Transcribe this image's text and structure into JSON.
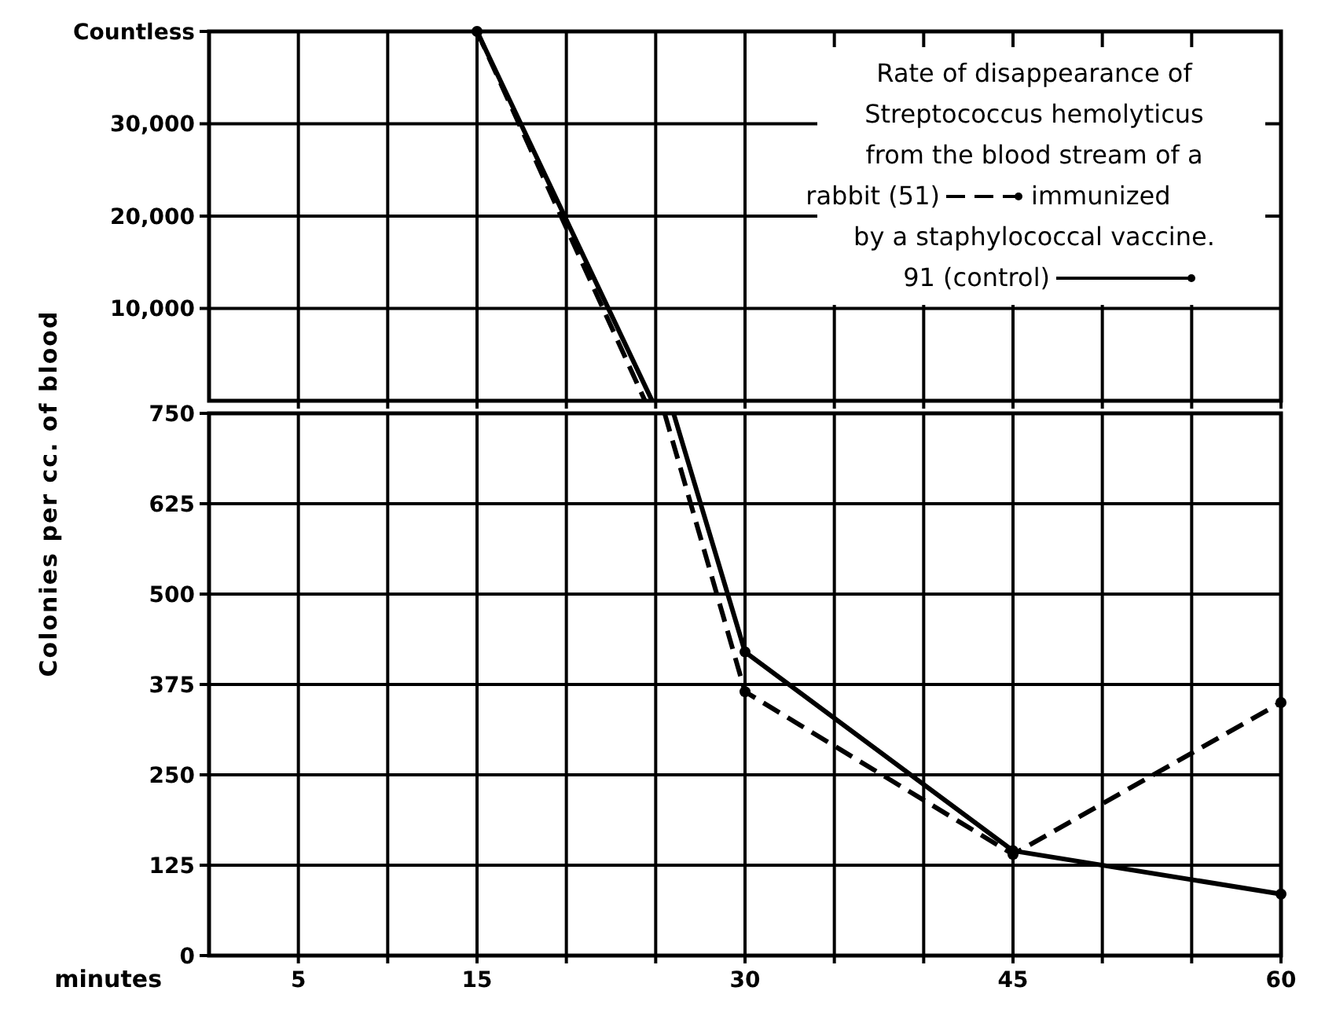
{
  "chart_data": [
    {
      "type": "line",
      "title": "Rate of disappearance of Streptococcus hemolyticus from the blood stream of a",
      "xlim": [
        0,
        60
      ],
      "xticks": [
        {
          "value": 5,
          "label": null
        },
        {
          "value": 10,
          "label": null
        },
        {
          "value": 15,
          "label": null
        },
        {
          "value": 20,
          "label": null
        },
        {
          "value": 25,
          "label": null
        },
        {
          "value": 30,
          "label": null
        },
        {
          "value": 35,
          "label": null
        },
        {
          "value": 40,
          "label": null
        },
        {
          "value": 45,
          "label": null
        },
        {
          "value": 50,
          "label": null
        },
        {
          "value": 55,
          "label": null
        },
        {
          "value": 60,
          "label": null
        }
      ],
      "ylim": [
        0,
        40000
      ],
      "yticks": [
        {
          "value": 10000,
          "label": "10,000"
        },
        {
          "value": 20000,
          "label": "20,000"
        },
        {
          "value": 30000,
          "label": "30,000"
        },
        {
          "value": 40000,
          "label": "Countless"
        }
      ],
      "series": [
        {
          "name": "rabbit (51)",
          "color": "#000000",
          "line_style": "dashed",
          "marker": "none",
          "x": [
            15,
            24.4
          ],
          "values": [
            40000,
            0
          ]
        },
        {
          "name": "91 (control)",
          "color": "#000000",
          "line_style": "solid",
          "marker": "none",
          "x": [
            15,
            24.8
          ],
          "values": [
            40000,
            0
          ]
        },
        {
          "type": "scatter",
          "color": "#000000",
          "marker": "circle",
          "x": [
            15
          ],
          "values": [
            40000
          ]
        }
      ],
      "annotations": [
        "immunized by a staphylococcal vaccine."
      ],
      "grid": true,
      "legend": "top right",
      "tick_labels": "y"
    },
    {
      "type": "line",
      "xlabel": "minutes",
      "ylabel": "Colonies per cc. of blood",
      "xlim": [
        0,
        60
      ],
      "xticks": [
        {
          "value": 5,
          "label": "5"
        },
        {
          "value": 10,
          "label": null
        },
        {
          "value": 15,
          "label": "15"
        },
        {
          "value": 20,
          "label": null
        },
        {
          "value": 25,
          "label": null
        },
        {
          "value": 30,
          "label": "30"
        },
        {
          "value": 35,
          "label": null
        },
        {
          "value": 40,
          "label": null
        },
        {
          "value": 45,
          "label": "45"
        },
        {
          "value": 50,
          "label": null
        },
        {
          "value": 55,
          "label": null
        },
        {
          "value": 60,
          "label": "60"
        }
      ],
      "ylim": [
        0,
        750
      ],
      "yticks": [
        0,
        125,
        250,
        375,
        500,
        625,
        750
      ],
      "series": [
        {
          "color": "#000000",
          "line_style": "dashed",
          "x": [
            25.5,
            30,
            45,
            60
          ],
          "values": [
            750,
            365,
            140,
            350
          ]
        },
        {
          "color": "#000000",
          "line_style": "solid",
          "x": [
            26,
            30,
            45,
            60
          ],
          "values": [
            750,
            420,
            145,
            85
          ]
        }
      ],
      "marker": "circle",
      "grid": true
    }
  ]
}
